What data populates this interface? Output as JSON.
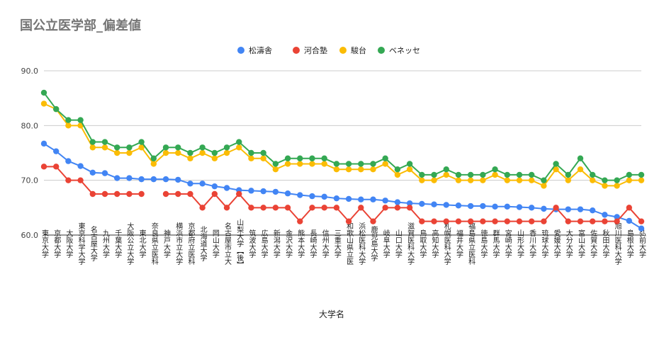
{
  "chart_data": {
    "type": "line",
    "title": "国公立医学部_偏差値",
    "xlabel": "大学名",
    "ylabel": "",
    "ylim": [
      60,
      90
    ],
    "yticks": [
      "60.0",
      "70.0",
      "80.0",
      "90.0"
    ],
    "grid": true,
    "legend_position": "top",
    "categories": [
      "東京大学",
      "京都大学",
      "大阪大学",
      "東京科学大学",
      "名古屋大学",
      "九州大学",
      "千葉大学",
      "大阪公立大学",
      "東北大学",
      "奈良県立医科",
      "神戸大学",
      "横浜市立大学",
      "京都府立医科",
      "北海道大学",
      "岡山大学",
      "名古屋市立大",
      "山梨大学【後】",
      "筑波大学",
      "広島大学",
      "新潟大学",
      "金沢大学",
      "熊本大学",
      "長崎大学",
      "信州大学",
      "三重大学",
      "和歌山県立医",
      "浜松医科大学",
      "鹿児島大学",
      "岐阜大学",
      "山口大学",
      "滋賀医科大学",
      "鳥取大学",
      "高知大学",
      "札幌医科大学",
      "福井大学",
      "福島県立医科",
      "徳島大学",
      "群馬大学",
      "宮崎大学",
      "山形大学",
      "香川大学",
      "琉球大学",
      "愛媛大学",
      "大分大学",
      "富山大学",
      "佐賀大学",
      "秋田大学",
      "旭川医科大学",
      "島根大学",
      "弘前大学"
    ],
    "series": [
      {
        "name": "松濤舎",
        "color": "#4285f4",
        "values": [
          76.7,
          75.3,
          73.5,
          72.6,
          71.4,
          71.3,
          70.4,
          70.4,
          70.2,
          70.2,
          70.2,
          70.1,
          69.4,
          69.4,
          68.9,
          68.6,
          68.2,
          68.1,
          68.0,
          67.9,
          67.6,
          67.3,
          67.1,
          67.0,
          66.7,
          66.6,
          66.5,
          66.5,
          66.3,
          66.0,
          65.8,
          65.7,
          65.6,
          65.5,
          65.4,
          65.3,
          65.3,
          65.2,
          65.2,
          65.1,
          65.0,
          64.8,
          64.7,
          64.7,
          64.7,
          64.5,
          63.7,
          63.3,
          62.6,
          61.2
        ]
      },
      {
        "name": "河合塾",
        "color": "#ea4335",
        "values": [
          72.5,
          72.5,
          70.0,
          70.0,
          67.5,
          67.5,
          67.5,
          67.5,
          67.5,
          null,
          67.5,
          67.5,
          67.5,
          65.0,
          67.5,
          65.0,
          67.5,
          65.0,
          65.0,
          65.0,
          65.0,
          62.5,
          65.0,
          65.0,
          65.0,
          62.5,
          65.0,
          62.5,
          65.0,
          65.0,
          65.0,
          62.5,
          62.5,
          62.5,
          62.5,
          62.5,
          62.5,
          62.5,
          62.5,
          62.5,
          62.5,
          62.5,
          65.0,
          62.5,
          62.5,
          62.5,
          62.5,
          62.5,
          65.0,
          62.5
        ]
      },
      {
        "name": "駿台",
        "color": "#fbbc04",
        "values": [
          84,
          83,
          80,
          80,
          76,
          76,
          75,
          75,
          76,
          73,
          75,
          75,
          74,
          75,
          74,
          75,
          76,
          74,
          74,
          72,
          73,
          73,
          73,
          73,
          72,
          72,
          72,
          72,
          73,
          71,
          72,
          70,
          70,
          71,
          70,
          70,
          70,
          71,
          70,
          70,
          70,
          69,
          72,
          70,
          72,
          70,
          69,
          69,
          70,
          70
        ]
      },
      {
        "name": "ベネッセ",
        "color": "#34a853",
        "values": [
          86,
          83,
          81,
          81,
          77,
          77,
          76,
          76,
          77,
          74,
          76,
          76,
          75,
          76,
          75,
          76,
          77,
          75,
          75,
          73,
          74,
          74,
          74,
          74,
          73,
          73,
          73,
          73,
          74,
          72,
          73,
          71,
          71,
          72,
          71,
          71,
          71,
          72,
          71,
          71,
          71,
          70,
          73,
          71,
          74,
          71,
          70,
          70,
          71,
          71
        ]
      }
    ]
  }
}
